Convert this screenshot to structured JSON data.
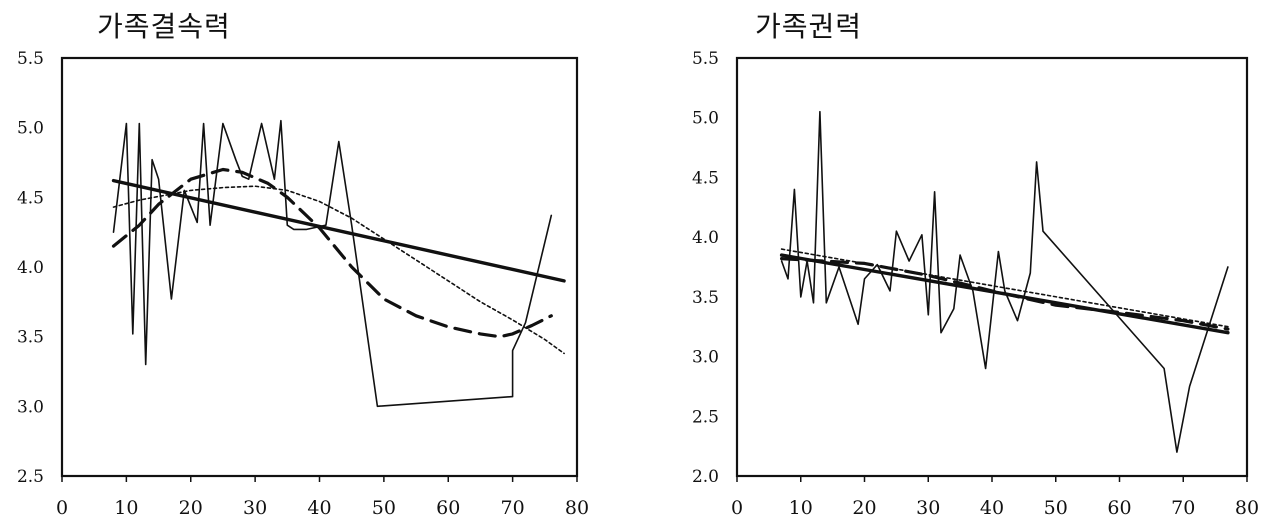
{
  "chart_data": [
    {
      "type": "line",
      "title": "가족결속력",
      "xlabel": "",
      "ylabel": "",
      "xlim": [
        0,
        80
      ],
      "ylim": [
        2.5,
        5.5
      ],
      "x_ticks": [
        "0",
        "10",
        "20",
        "30",
        "40",
        "50",
        "60",
        "70",
        "80"
      ],
      "y_ticks": [
        "2.5",
        "3.0",
        "3.5",
        "4.0",
        "4.5",
        "5.0",
        "5.5"
      ],
      "grid": false,
      "legend": "none",
      "series": [
        {
          "style": "solid-thin",
          "x": [
            8,
            10,
            11,
            12,
            13,
            14,
            15,
            17,
            19,
            21,
            22,
            23,
            25,
            27,
            28,
            29,
            31,
            33,
            34,
            35,
            36,
            38,
            41,
            43,
            45,
            49,
            70,
            70,
            72,
            76
          ],
          "y": [
            4.25,
            5.03,
            3.52,
            5.03,
            3.3,
            4.77,
            4.63,
            3.77,
            4.55,
            4.32,
            5.03,
            4.3,
            5.03,
            4.77,
            4.65,
            4.63,
            5.03,
            4.63,
            5.05,
            4.3,
            4.27,
            4.27,
            4.3,
            4.9,
            4.3,
            3.0,
            3.07,
            3.4,
            3.6,
            4.37
          ]
        },
        {
          "style": "solid-thick",
          "x": [
            8,
            78
          ],
          "y": [
            4.62,
            3.9
          ]
        },
        {
          "style": "dotted",
          "x": [
            8,
            12,
            20,
            25,
            30,
            35,
            40,
            45,
            50,
            55,
            60,
            65,
            70,
            75,
            78
          ],
          "y": [
            4.43,
            4.48,
            4.55,
            4.57,
            4.58,
            4.55,
            4.47,
            4.35,
            4.2,
            4.05,
            3.9,
            3.75,
            3.62,
            3.48,
            3.38
          ]
        },
        {
          "style": "dashed",
          "x": [
            8,
            12,
            15,
            20,
            25,
            28,
            32,
            35,
            40,
            45,
            50,
            55,
            60,
            65,
            68,
            70,
            73,
            76
          ],
          "y": [
            4.15,
            4.3,
            4.45,
            4.63,
            4.7,
            4.68,
            4.6,
            4.5,
            4.28,
            4.0,
            3.77,
            3.65,
            3.57,
            3.52,
            3.5,
            3.52,
            3.58,
            3.65
          ]
        }
      ]
    },
    {
      "type": "line",
      "title": "가족권력",
      "xlabel": "",
      "ylabel": "",
      "xlim": [
        0,
        80
      ],
      "ylim": [
        2.0,
        5.5
      ],
      "x_ticks": [
        "0",
        "10",
        "20",
        "30",
        "40",
        "50",
        "60",
        "70",
        "80"
      ],
      "y_ticks": [
        "2.0",
        "2.5",
        "3.0",
        "3.5",
        "4.0",
        "4.5",
        "5.0",
        "5.5"
      ],
      "grid": false,
      "legend": "none",
      "series": [
        {
          "style": "solid-thin",
          "x": [
            7,
            8,
            9,
            10,
            11,
            12,
            13,
            14,
            16,
            19,
            20,
            22,
            24,
            25,
            27,
            29,
            30,
            31,
            32,
            34,
            35,
            37,
            39,
            41,
            42,
            44,
            46,
            47,
            48,
            67,
            69,
            71,
            77
          ],
          "y": [
            3.8,
            3.65,
            4.4,
            3.5,
            3.8,
            3.45,
            5.05,
            3.45,
            3.75,
            3.27,
            3.65,
            3.77,
            3.55,
            4.05,
            3.8,
            4.02,
            3.35,
            4.38,
            3.2,
            3.4,
            3.85,
            3.55,
            2.9,
            3.88,
            3.55,
            3.3,
            3.7,
            4.63,
            4.05,
            2.9,
            2.2,
            2.75,
            3.75
          ]
        },
        {
          "style": "solid-thick",
          "x": [
            7,
            77
          ],
          "y": [
            3.85,
            3.2
          ]
        },
        {
          "style": "dotted",
          "x": [
            7,
            77
          ],
          "y": [
            3.9,
            3.25
          ]
        },
        {
          "style": "dashed",
          "x": [
            7,
            20,
            30,
            40,
            50,
            60,
            70,
            77
          ],
          "y": [
            3.82,
            3.78,
            3.68,
            3.55,
            3.43,
            3.37,
            3.3,
            3.23
          ]
        }
      ]
    }
  ]
}
